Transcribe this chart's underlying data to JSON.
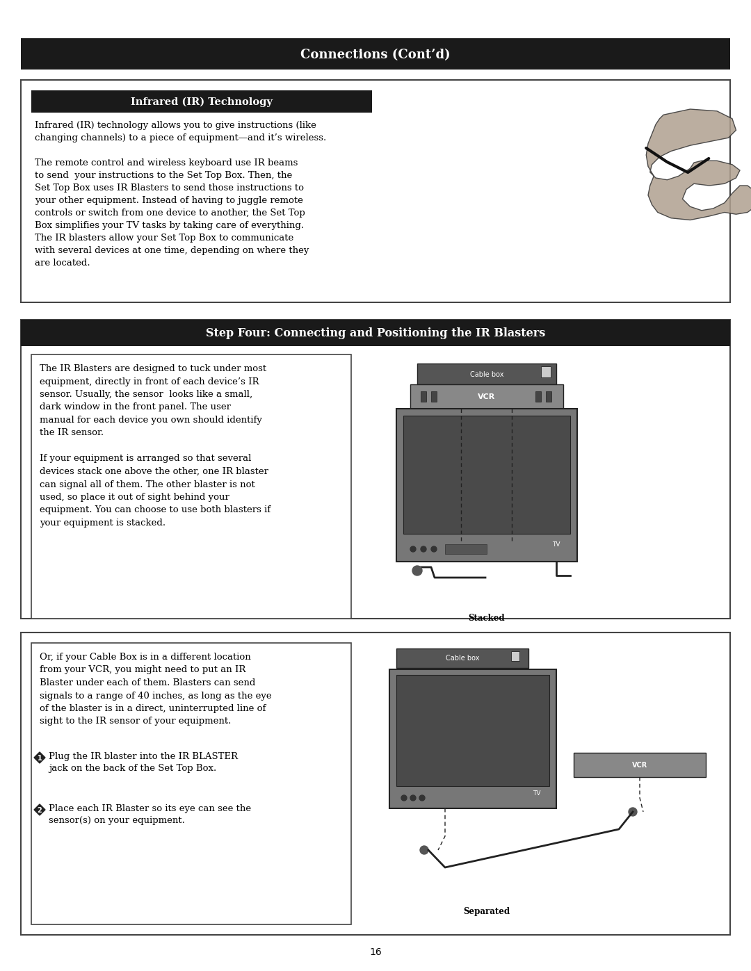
{
  "page_bg": "#ffffff",
  "header_bg": "#1a1a1a",
  "header_text": "Connections (Cont’d)",
  "header_text_color": "#ffffff",
  "section1_border": "#555555",
  "section1_header_bg": "#1a1a1a",
  "section1_header_text": "Infrared (IR) Technology",
  "section1_header_text_color": "#ffffff",
  "section1_body": "Infrared (IR) technology allows you to give instructions (like\nchanging channels) to a piece of equipment—and it’s wireless.\n\nThe remote control and wireless keyboard use IR beams\nto send  your instructions to the Set Top Box. Then, the\nSet Top Box uses IR Blasters to send those instructions to\nyour other equipment. Instead of having to juggle remote\ncontrols or switch from one device to another, the Set Top\nBox simplifies your TV tasks by taking care of everything.\nThe IR blasters allow your Set Top Box to communicate\nwith several devices at one time, depending on where they\nare located.",
  "section2_border": "#555555",
  "section2_header_bg": "#1a1a1a",
  "section2_header_text": "Step Four: Connecting and Positioning the IR Blasters",
  "section2_header_text_color": "#ffffff",
  "section2_left_text": "The IR Blasters are designed to tuck under most\nequipment, directly in front of each device’s IR\nsensor. Usually, the sensor  looks like a small,\ndark window in the front panel. The user\nmanual for each device you own should identify\nthe IR sensor.\n\nIf your equipment is arranged so that several\ndevices stack one above the other, one IR blaster\ncan signal all of them. The other blaster is not\nused, so place it out of sight behind your\nequipment. You can choose to use both blasters if\nyour equipment is stacked.",
  "section3_left_text1": "Or, if your Cable Box is in a different location\nfrom your VCR, you might need to put an IR\nBlaster under each of them. Blasters can send\nsignals to a range of 40 inches, as long as the eye\nof the blaster is in a direct, uninterrupted line of\nsight to the IR sensor of your equipment.",
  "section3_step1": "Plug the IR blaster into the IR BLASTER\njack on the back of the Set Top Box.",
  "section3_step2": "Place each IR Blaster so its eye can see the\nsensor(s) on your equipment.",
  "stacked_label": "Stacked",
  "separated_label": "Separated",
  "page_number": "16",
  "text_color": "#000000",
  "body_font_size": 9.5,
  "header_font_size": 13
}
